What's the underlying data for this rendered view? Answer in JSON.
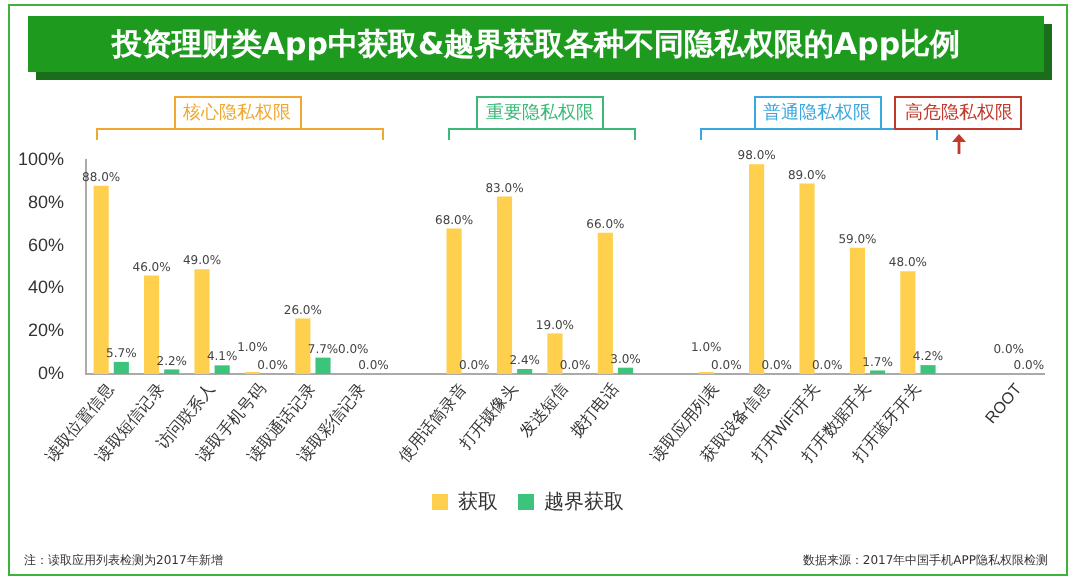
{
  "chart_data": {
    "type": "bar",
    "title": "投资理财类App中获取&越界获取各种不同隐私权限的App比例",
    "categories": [
      "读取位置信息",
      "读取短信记录",
      "访问联系人",
      "读取手机号码",
      "读取通话记录",
      "读取彩信记录",
      null,
      "使用话筒录音",
      "打开摄像头",
      "发送短信",
      "拨打电话",
      null,
      "读取应用列表",
      "获取设备信息",
      "打开WiFi开关",
      "打开数据开关",
      "打开蓝牙开关",
      null,
      "ROOT"
    ],
    "series": [
      {
        "name": "获取",
        "color": "#ffd04d",
        "values": [
          88,
          46,
          49,
          1,
          26,
          0,
          null,
          68,
          83,
          19,
          66,
          null,
          1,
          98,
          89,
          59,
          48,
          null,
          0
        ],
        "value_labels": [
          "88.0%",
          "46.0%",
          "49.0%",
          "1.0%",
          "26.0%",
          "0.0%",
          null,
          "68.0%",
          "83.0%",
          "19.0%",
          "66.0%",
          null,
          "1.0%",
          "98.0%",
          "89.0%",
          "59.0%",
          "48.0%",
          null,
          "0.0%"
        ]
      },
      {
        "name": "越界获取",
        "color": "#3cc47c",
        "values": [
          5.7,
          2.2,
          4.1,
          0,
          7.7,
          0,
          null,
          0,
          2.4,
          0,
          3,
          null,
          0,
          0,
          0,
          1.7,
          4.2,
          null,
          0
        ],
        "value_labels": [
          "5.7%",
          "2.2%",
          "4.1%",
          "0.0%",
          "7.7%",
          "0.0%",
          null,
          "0.0%",
          "2.4%",
          "0.0%",
          "3.0%",
          null,
          "0.0%",
          "0.0%",
          "0.0%",
          "1.7%",
          "4.2%",
          null,
          "0.0%"
        ]
      }
    ],
    "ylim": [
      0,
      100
    ],
    "yticks": [
      {
        "value": 0,
        "label": "0%"
      },
      {
        "value": 20,
        "label": "20%"
      },
      {
        "value": 40,
        "label": "40%"
      },
      {
        "value": 60,
        "label": "60%"
      },
      {
        "value": 80,
        "label": "80%"
      },
      {
        "value": 100,
        "label": "100%"
      }
    ],
    "grid": false,
    "legend": "bottom",
    "annotations": [
      "核心隐私权限",
      "重要隐私权限",
      "普通隐私权限",
      "高危隐私权限",
      "注：读取应用列表检测为2017年新增",
      "数据来源：2017年中国手机APP隐私权限检测"
    ]
  }
}
